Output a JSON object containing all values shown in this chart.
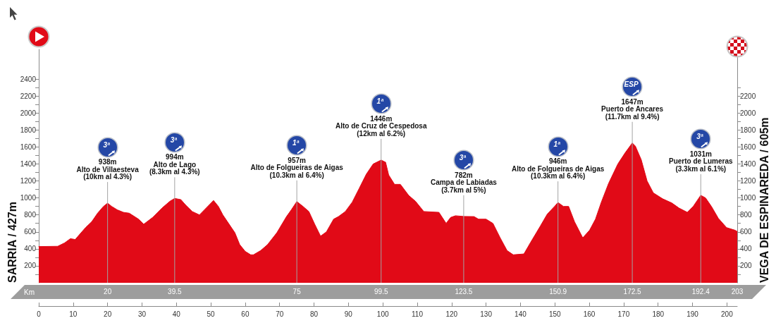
{
  "chart_data": {
    "type": "area",
    "ylabel": "SARRIA / 427m",
    "y2label": "VEGA DE ESPINAREDA / 605m",
    "x2label": "Km",
    "color": "#e10a17",
    "marker": "none",
    "x": [
      0,
      5.5,
      7.5,
      9.2,
      10.6,
      12.3,
      13.6,
      15.4,
      17.1,
      18.8,
      20,
      21.2,
      22.8,
      24.6,
      26.3,
      29,
      30.5,
      33.1,
      35.8,
      38.1,
      39.5,
      41.3,
      42.6,
      44.6,
      46.7,
      50.8,
      52.2,
      53.5,
      57,
      58.4,
      60,
      61.6,
      62.4,
      64.5,
      66.5,
      69.2,
      72,
      73.4,
      75,
      76.8,
      78.5,
      80.2,
      81.9,
      83.6,
      85.7,
      87.1,
      89.1,
      91.1,
      93.1,
      95.2,
      97.2,
      99.5,
      100.8,
      101.7,
      103.4,
      105.1,
      107.5,
      109.5,
      111.9,
      116.3,
      118.4,
      119.7,
      121.1,
      123.5,
      126.5,
      127.8,
      130,
      132,
      134.1,
      136.1,
      137.9,
      141,
      143,
      145.8,
      147.8,
      149.9,
      150.9,
      152.5,
      154,
      155.7,
      158.1,
      160.1,
      161.8,
      163.5,
      165.6,
      168.3,
      170.4,
      172.5,
      173.4,
      175.1,
      176.8,
      178.6,
      181.3,
      184,
      186.1,
      188.5,
      190.2,
      192.4,
      193.8,
      195.5,
      197.5,
      199.9,
      202.3,
      203
    ],
    "values": [
      427,
      430,
      470,
      520,
      510,
      590,
      650,
      720,
      820,
      900,
      938,
      900,
      860,
      830,
      820,
      750,
      690,
      770,
      880,
      960,
      994,
      980,
      920,
      840,
      800,
      970,
      900,
      800,
      590,
      450,
      370,
      330,
      330,
      380,
      450,
      590,
      780,
      860,
      957,
      900,
      840,
      690,
      550,
      600,
      750,
      780,
      840,
      950,
      1110,
      1280,
      1400,
      1446,
      1420,
      1270,
      1160,
      1160,
      1030,
      960,
      840,
      830,
      700,
      770,
      790,
      782,
      780,
      750,
      750,
      700,
      530,
      380,
      330,
      340,
      480,
      670,
      810,
      900,
      946,
      900,
      900,
      720,
      530,
      620,
      750,
      950,
      1170,
      1400,
      1530,
      1647,
      1610,
      1450,
      1200,
      1060,
      990,
      940,
      880,
      830,
      900,
      1031,
      1000,
      900,
      760,
      650,
      620,
      605
    ],
    "xlim": [
      0,
      203
    ],
    "xticks": [
      0,
      10,
      20,
      30,
      40,
      50,
      60,
      70,
      80,
      90,
      100,
      110,
      120,
      130,
      140,
      150,
      160,
      170,
      180,
      190,
      200
    ],
    "x2lim": [
      0,
      203
    ],
    "x2ticks": [
      20,
      39.5,
      75,
      99.5,
      123.5,
      150.9,
      172.5,
      192.4,
      203
    ],
    "ylim": [
      0,
      2750
    ],
    "yticks": [
      {
        "value": 100,
        "label": null
      },
      200,
      {
        "value": 300,
        "label": null
      },
      400,
      {
        "value": 500,
        "label": null
      },
      600,
      {
        "value": 700,
        "label": null
      },
      800,
      {
        "value": 900,
        "label": null
      },
      1000,
      {
        "value": 1100,
        "label": null
      },
      1200,
      {
        "value": 1300,
        "label": null
      },
      1400,
      {
        "value": 1500,
        "label": null
      },
      1600,
      {
        "value": 1700,
        "label": null
      },
      1800,
      {
        "value": 1900,
        "label": null
      },
      2000,
      {
        "value": 2100,
        "label": null
      },
      2200,
      {
        "value": 2300,
        "label": null
      },
      2400
    ],
    "y2lim": [
      0,
      2750
    ],
    "y2ticks": [
      {
        "value": 100,
        "label": null
      },
      200,
      {
        "value": 300,
        "label": null
      },
      400,
      {
        "value": 500,
        "label": null
      },
      600,
      {
        "value": 700,
        "label": null
      },
      800,
      {
        "value": 900,
        "label": null
      },
      1000,
      {
        "value": 1100,
        "label": null
      },
      1200,
      {
        "value": 1300,
        "label": null
      },
      1400,
      {
        "value": 1500,
        "label": null
      },
      1600,
      {
        "value": 1700,
        "label": null
      },
      1800,
      {
        "value": 1900,
        "label": null
      },
      2000,
      {
        "value": 2100,
        "label": null
      },
      2200,
      {
        "value": 2300,
        "label": null
      }
    ],
    "ref_lines": [
      {
        "axis": "x",
        "value": 20,
        "label": "3ª\n938m\nAlto de Villaesteva\n(10km al 4.3%)"
      },
      {
        "axis": "x",
        "value": 39.5,
        "label": "3ª\n994m\nAlto de Lago\n(8.3km al 4.3%)"
      },
      {
        "axis": "x",
        "value": 75,
        "label": "1ª\n957m\nAlto de Folgueiras de Aigas\n(10.3km al 6.4%)"
      },
      {
        "axis": "x",
        "value": 99.5,
        "label": "1ª\n1446m\nAlto de Cruz de Cespedosa\n(12km al 6.2%)"
      },
      {
        "axis": "x",
        "value": 123.5,
        "label": "3ª\n782m\nCampa de Labiadas\n(3.7km al 5%)"
      },
      {
        "axis": "x",
        "value": 150.9,
        "label": "1ª\n946m\nAlto de Folgueiras de Aigas\n(10.3km al 6.4%)"
      },
      {
        "axis": "x",
        "value": 172.5,
        "label": "ESP\n1647m\nPuerto de Ancares\n(11.7km al 9.4%)"
      },
      {
        "axis": "x",
        "value": 192.4,
        "label": "3ª\n1031m\nPuerto de Lumeras\n(3.3km al 6.1%)"
      }
    ]
  }
}
